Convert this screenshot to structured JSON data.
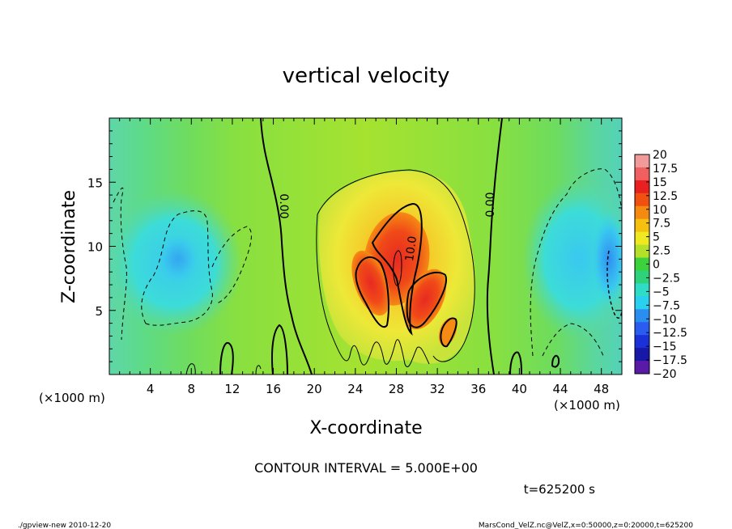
{
  "chart_data": {
    "type": "heatmap",
    "title": "vertical velocity",
    "xlabel": "X-coordinate",
    "ylabel": "Z-coordinate",
    "x_unit_left": "(×1000 m)",
    "x_unit_right": "(×1000 m)",
    "y_unit": "(×1000 m)",
    "xlim": [
      0,
      50
    ],
    "ylim": [
      0,
      20
    ],
    "x_ticks": [
      4,
      8,
      12,
      16,
      20,
      24,
      28,
      32,
      36,
      40,
      44,
      48
    ],
    "y_ticks": [
      5,
      10,
      15
    ],
    "colorbar": {
      "levels": [
        "20",
        "17.5",
        "15",
        "12.5",
        "10",
        "7.5",
        "5",
        "2.5",
        "0",
        "−2.5",
        "−5",
        "−7.5",
        "−10",
        "−12.5",
        "−15",
        "−17.5",
        "−20"
      ],
      "colors": [
        "#f09a9a",
        "#f06060",
        "#e82020",
        "#f05010",
        "#f58a10",
        "#f5c010",
        "#f0e820",
        "#b4e02a",
        "#3cd23c",
        "#2ed27a",
        "#2edcc8",
        "#2ad0f0",
        "#2a8ef0",
        "#2a5cf0",
        "#1a30d8",
        "#1818a8",
        "#5a1aa8"
      ]
    },
    "contour_labels": [
      "0.00",
      "0.00",
      "10.0"
    ],
    "contour_interval_text": "CONTOUR INTERVAL = 5.000E+00",
    "time_text": "t=625200 s",
    "grid": false
  },
  "footer": {
    "left": "./gpview-new   2010-12-20",
    "right": "MarsCond_VelZ.nc@VelZ,x=0:50000,z=0:20000,t=625200"
  }
}
